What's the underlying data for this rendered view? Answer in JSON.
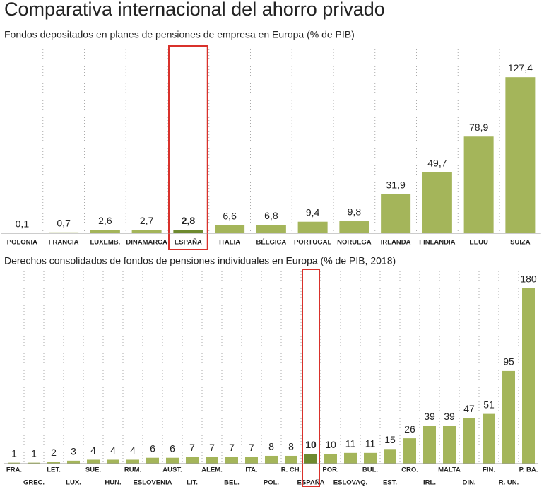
{
  "title": "Comparativa internacional del ahorro privado",
  "chart_data": [
    {
      "type": "bar",
      "subtitle": "Fondos depositados en planes de pensiones de empresa en Europa (% de PIB)",
      "categories": [
        "POLONIA",
        "FRANCIA",
        "LUXEMB.",
        "DINAMARCA",
        "ESPAÑA",
        "ITALIA",
        "BÉLGICA",
        "PORTUGAL",
        "NORUEGA",
        "IRLANDA",
        "FINLANDIA",
        "EEUU",
        "SUIZA"
      ],
      "values": [
        0.1,
        0.7,
        2.6,
        2.7,
        2.8,
        6.6,
        6.8,
        9.4,
        9.8,
        31.9,
        49.7,
        78.9,
        127.4
      ],
      "value_labels": [
        "0,1",
        "0,7",
        "2,6",
        "2,7",
        "2,8",
        "6,6",
        "6,8",
        "9,4",
        "9,8",
        "31,9",
        "49,7",
        "78,9",
        "127,4"
      ],
      "color": "#a4b55a",
      "highlight_color": "#6e8a2f",
      "highlight_index": 4,
      "ylim": [
        0,
        150
      ]
    },
    {
      "type": "bar",
      "subtitle": "Derechos consolidados de fondos de pensiones individuales en Europa (% de PIB, 2018)",
      "categories": [
        "FRA.",
        "GREC.",
        "LET.",
        "LUX.",
        "SUE.",
        "HUN.",
        "RUM.",
        "ESLOVENIA",
        "AUST.",
        "LIT.",
        "ALEM.",
        "BEL.",
        "ITA.",
        "POL.",
        "R. CH.",
        "ESPAÑA",
        "POR.",
        "ESLOVAQ.",
        "BUL.",
        "EST.",
        "CRO.",
        "IRL.",
        "MALTA",
        "DIN.",
        "FIN.",
        "R. UN.",
        "P. BA."
      ],
      "values": [
        1,
        1,
        2,
        3,
        4,
        4,
        4,
        6,
        6,
        7,
        7,
        7,
        7,
        8,
        8,
        10,
        10,
        11,
        11,
        15,
        26,
        39,
        39,
        47,
        51,
        95,
        180
      ],
      "color": "#a4b55a",
      "highlight_color": "#6e8a2f",
      "highlight_index": 15,
      "ylim": [
        0,
        200
      ]
    }
  ]
}
